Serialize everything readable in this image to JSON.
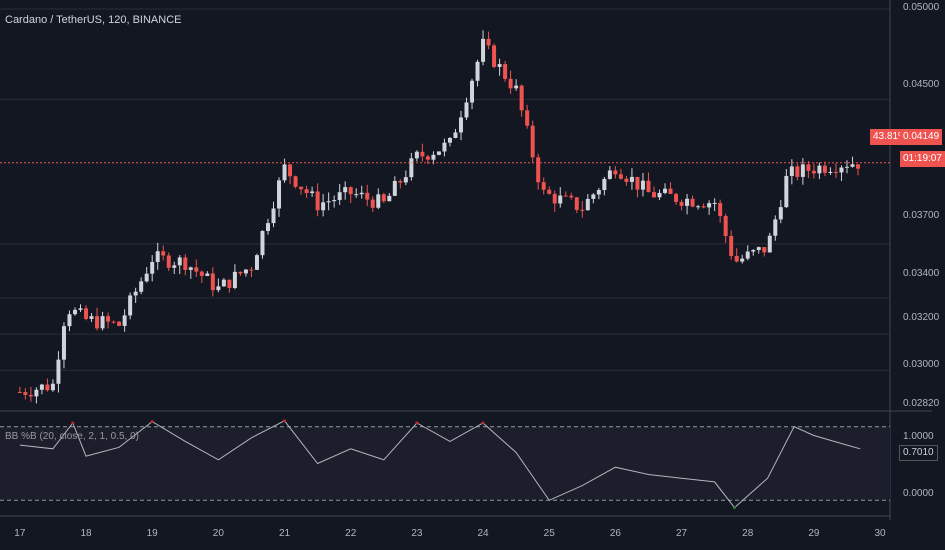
{
  "header": {
    "symbol_title": "Cardano / TetherUS, 120, BINANCE",
    "indicator_title": "BB %B (20, close, 2, 1, 0.5, 0)"
  },
  "price_axis": {
    "ticks": [
      "0.05000",
      "0.04500",
      "0.04149",
      "0.03700",
      "0.03400",
      "0.03200",
      "0.03000",
      "0.02820"
    ]
  },
  "indicator_axis": {
    "ticks": [
      "1.0000",
      "0.7010",
      "0.0000"
    ]
  },
  "tags": {
    "percent": "43.81%",
    "price": "0.04149",
    "countdown": "01:19:07",
    "indicator_value": "0.7010"
  },
  "time_axis": {
    "labels": [
      "17",
      "18",
      "19",
      "20",
      "21",
      "22",
      "23",
      "24",
      "25",
      "26",
      "27",
      "28",
      "29",
      "30"
    ]
  },
  "colors": {
    "background": "#131722",
    "up": "#d1d4dc",
    "down": "#ef5350",
    "grid": "#2a2e39",
    "indicator_line": "#b2b5be",
    "overbought": "#c62828",
    "oversold": "#2e7d32",
    "price_line": "#ef5350"
  },
  "chart_data": [
    {
      "type": "candlestick",
      "title": "Cardano / TetherUS, 120, BINANCE",
      "x": [
        "17",
        "18",
        "19",
        "20",
        "21",
        "22",
        "23",
        "24",
        "25",
        "26",
        "27",
        "28",
        "29",
        "30"
      ],
      "ylim": [
        0.0278,
        0.0505
      ],
      "last_price": 0.04149,
      "close_trend": [
        {
          "day": 17.0,
          "close": 0.0288
        },
        {
          "day": 17.5,
          "close": 0.0292
        },
        {
          "day": 17.7,
          "close": 0.0335
        },
        {
          "day": 18.0,
          "close": 0.0328
        },
        {
          "day": 18.5,
          "close": 0.0325
        },
        {
          "day": 19.0,
          "close": 0.0362
        },
        {
          "day": 19.5,
          "close": 0.036
        },
        {
          "day": 20.0,
          "close": 0.0345
        },
        {
          "day": 20.5,
          "close": 0.0358
        },
        {
          "day": 21.0,
          "close": 0.0412
        },
        {
          "day": 21.5,
          "close": 0.0392
        },
        {
          "day": 22.0,
          "close": 0.0398
        },
        {
          "day": 22.5,
          "close": 0.0392
        },
        {
          "day": 23.0,
          "close": 0.0418
        },
        {
          "day": 23.5,
          "close": 0.0425
        },
        {
          "day": 24.0,
          "close": 0.048
        },
        {
          "day": 24.5,
          "close": 0.0455
        },
        {
          "day": 24.9,
          "close": 0.0398
        },
        {
          "day": 25.5,
          "close": 0.039
        },
        {
          "day": 26.0,
          "close": 0.0413
        },
        {
          "day": 26.5,
          "close": 0.0398
        },
        {
          "day": 27.0,
          "close": 0.0395
        },
        {
          "day": 27.5,
          "close": 0.0393
        },
        {
          "day": 27.8,
          "close": 0.036
        },
        {
          "day": 28.3,
          "close": 0.0368
        },
        {
          "day": 28.6,
          "close": 0.0408
        },
        {
          "day": 29.0,
          "close": 0.0412
        },
        {
          "day": 29.5,
          "close": 0.0415
        },
        {
          "day": 29.7,
          "close": 0.04149
        }
      ]
    },
    {
      "type": "line",
      "title": "BB %B (20, close, 2, 1, 0.5, 0)",
      "ylim": [
        -0.2,
        1.2
      ],
      "reference_lines": [
        1.0,
        0.0
      ],
      "last_value": 0.701,
      "series": [
        {
          "values": [
            {
              "day": 17.0,
              "value": 0.75
            },
            {
              "day": 17.5,
              "value": 0.7
            },
            {
              "day": 17.8,
              "value": 1.05
            },
            {
              "day": 18.0,
              "value": 0.6
            },
            {
              "day": 18.5,
              "value": 0.72
            },
            {
              "day": 19.0,
              "value": 1.07
            },
            {
              "day": 19.5,
              "value": 0.8
            },
            {
              "day": 20.0,
              "value": 0.55
            },
            {
              "day": 20.5,
              "value": 0.85
            },
            {
              "day": 21.0,
              "value": 1.08
            },
            {
              "day": 21.5,
              "value": 0.5
            },
            {
              "day": 22.0,
              "value": 0.7
            },
            {
              "day": 22.5,
              "value": 0.55
            },
            {
              "day": 23.0,
              "value": 1.05
            },
            {
              "day": 23.5,
              "value": 0.8
            },
            {
              "day": 24.0,
              "value": 1.05
            },
            {
              "day": 24.5,
              "value": 0.65
            },
            {
              "day": 25.0,
              "value": 0.0
            },
            {
              "day": 25.5,
              "value": 0.2
            },
            {
              "day": 26.0,
              "value": 0.45
            },
            {
              "day": 26.5,
              "value": 0.35
            },
            {
              "day": 27.0,
              "value": 0.3
            },
            {
              "day": 27.5,
              "value": 0.25
            },
            {
              "day": 27.8,
              "value": -0.1
            },
            {
              "day": 28.3,
              "value": 0.3
            },
            {
              "day": 28.7,
              "value": 1.0
            },
            {
              "day": 29.0,
              "value": 0.88
            },
            {
              "day": 29.5,
              "value": 0.75
            },
            {
              "day": 29.7,
              "value": 0.7
            }
          ]
        }
      ]
    }
  ]
}
